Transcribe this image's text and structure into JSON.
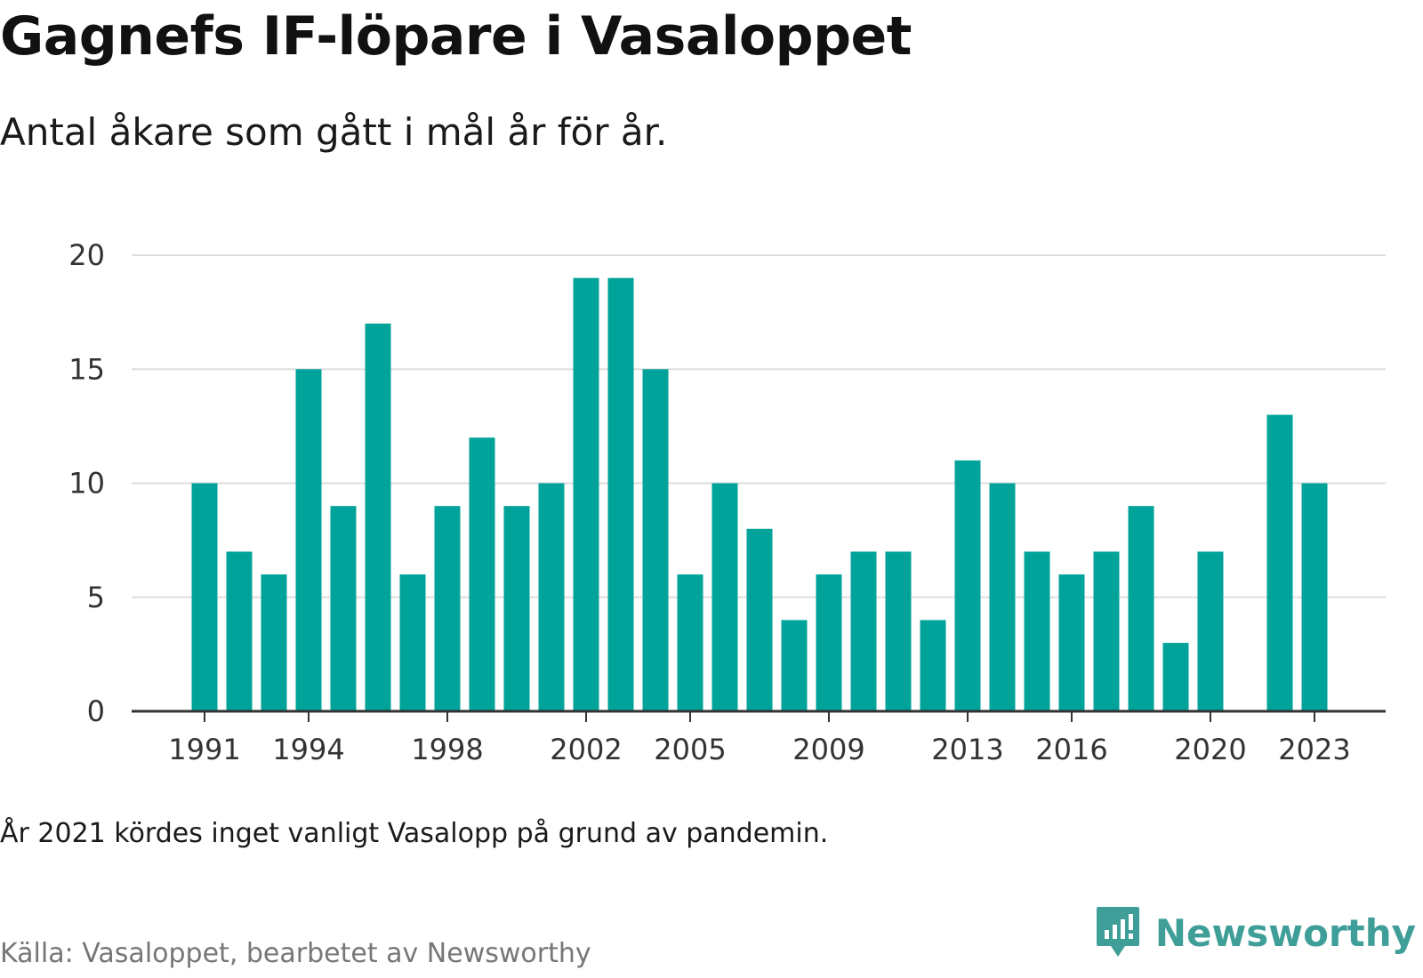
{
  "header": {
    "title": "Gagnefs IF-löpare i Vasaloppet",
    "subtitle": "Antal åkare som gått i mål år för år."
  },
  "footer": {
    "note": "År 2021 kördes inget vanligt Vasalopp på grund av pandemin.",
    "source": "Källa: Vasaloppet, bearbetet av Newsworthy",
    "brand": "Newsworthy"
  },
  "colors": {
    "bar": "#00a39a",
    "grid": "#dddddd",
    "axis": "#333333",
    "brand": "#3f9e98"
  },
  "icons": {
    "brand_logo": "chart-speech-bubble-icon"
  },
  "chart_data": {
    "type": "bar",
    "title": "Gagnefs IF-löpare i Vasaloppet",
    "subtitle": "Antal åkare som gått i mål år för år.",
    "x": [
      1991,
      1992,
      1993,
      1994,
      1995,
      1996,
      1997,
      1998,
      1999,
      2000,
      2001,
      2002,
      2003,
      2004,
      2005,
      2006,
      2007,
      2008,
      2009,
      2010,
      2011,
      2012,
      2013,
      2014,
      2015,
      2016,
      2017,
      2018,
      2019,
      2020,
      2021,
      2022,
      2023
    ],
    "values": [
      10,
      7,
      6,
      15,
      9,
      17,
      6,
      9,
      12,
      9,
      10,
      19,
      19,
      15,
      6,
      10,
      8,
      4,
      6,
      7,
      7,
      4,
      11,
      10,
      7,
      6,
      7,
      9,
      3,
      7,
      null,
      13,
      10
    ],
    "x_tick_labels": [
      "1991",
      "1994",
      "1998",
      "2002",
      "2005",
      "2009",
      "2013",
      "2016",
      "2020",
      "2023"
    ],
    "y_ticks": [
      0,
      5,
      10,
      15,
      20
    ],
    "ylim": [
      0,
      20
    ],
    "grid": true,
    "legend": "none"
  }
}
